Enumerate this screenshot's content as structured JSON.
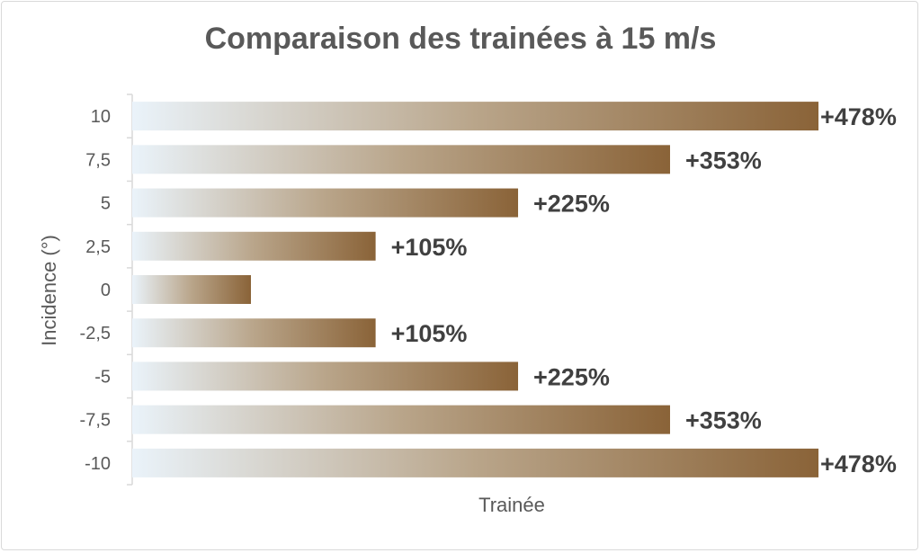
{
  "chart_data": {
    "type": "bar",
    "orientation": "horizontal",
    "title": "Comparaison des trainées à 15 m/s",
    "xlabel": "Trainée",
    "ylabel": "Incidence (°)",
    "categories": [
      "10",
      "7,5",
      "5",
      "2,5",
      "0",
      "-2,5",
      "-5",
      "-7,5",
      "-10"
    ],
    "values": [
      478,
      353,
      225,
      105,
      0,
      105,
      225,
      353,
      478
    ],
    "data_labels": [
      "+478%",
      "+353%",
      "+225%",
      "+105%",
      "",
      "+105%",
      "+225%",
      "+353%",
      "+478%"
    ],
    "xlim": [
      -100,
      478
    ],
    "grid": false,
    "legend": "none",
    "colors": {
      "bar_start": "#eaf3fa",
      "bar_mid": "#b9a58a",
      "bar_end": "#8a6338",
      "text": "#595959",
      "label": "#404040",
      "axis": "#d9d9d9"
    }
  }
}
